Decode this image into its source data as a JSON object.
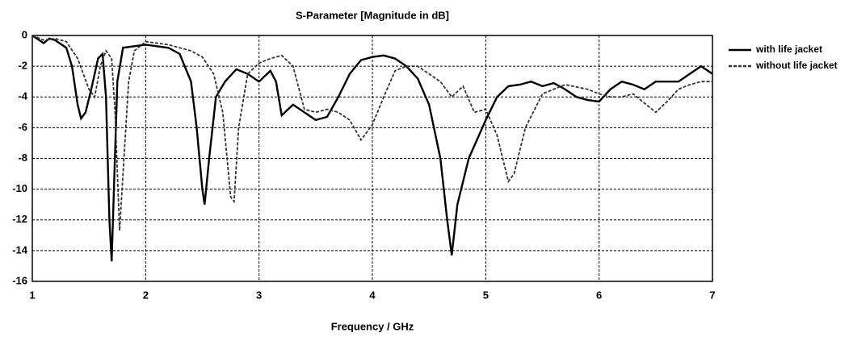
{
  "chart_data": {
    "type": "line",
    "title": "S-Parameter [Magnitude in dB]",
    "x_label": "Frequency / GHz",
    "xlim": [
      1,
      7
    ],
    "xticks": [
      1,
      2,
      3,
      4,
      5,
      6,
      7
    ],
    "ylim": [
      -16,
      0
    ],
    "yticks": [
      -16,
      -14,
      -12,
      -10,
      -8,
      -6,
      -4,
      -2,
      0
    ],
    "grid": true,
    "legend": "right",
    "series": [
      {
        "name": "with life jacket",
        "color": "#000000",
        "style": "solid",
        "x": [
          1.0,
          1.1,
          1.15,
          1.2,
          1.3,
          1.35,
          1.4,
          1.43,
          1.47,
          1.52,
          1.58,
          1.62,
          1.65,
          1.68,
          1.7,
          1.72,
          1.75,
          1.8,
          1.9,
          2.0,
          2.2,
          2.3,
          2.4,
          2.45,
          2.5,
          2.52,
          2.56,
          2.62,
          2.7,
          2.8,
          2.9,
          3.0,
          3.1,
          3.15,
          3.2,
          3.3,
          3.4,
          3.5,
          3.6,
          3.7,
          3.8,
          3.9,
          4.0,
          4.1,
          4.2,
          4.3,
          4.4,
          4.5,
          4.6,
          4.66,
          4.7,
          4.75,
          4.85,
          5.0,
          5.1,
          5.2,
          5.3,
          5.4,
          5.5,
          5.6,
          5.7,
          5.8,
          5.9,
          6.0,
          6.1,
          6.2,
          6.3,
          6.4,
          6.5,
          6.7,
          6.8,
          6.9,
          7.0
        ],
        "values": [
          0,
          -0.5,
          -0.2,
          -0.3,
          -0.8,
          -2,
          -4.5,
          -5.4,
          -5,
          -3.5,
          -1.5,
          -1.2,
          -4,
          -12,
          -14.7,
          -10,
          -3,
          -0.8,
          -0.7,
          -0.6,
          -0.8,
          -1.2,
          -3,
          -6,
          -10,
          -11,
          -8,
          -4,
          -3,
          -2.2,
          -2.5,
          -3,
          -2.3,
          -3,
          -5.2,
          -4.5,
          -5,
          -5.5,
          -5.3,
          -4,
          -2.5,
          -1.6,
          -1.4,
          -1.3,
          -1.5,
          -2,
          -2.8,
          -4.5,
          -8,
          -12,
          -14.3,
          -11,
          -8,
          -5.5,
          -4,
          -3.3,
          -3.2,
          -3,
          -3.3,
          -3.1,
          -3.5,
          -4,
          -4.2,
          -4.3,
          -3.5,
          -3,
          -3.2,
          -3.5,
          -3,
          -3,
          -2.5,
          -2,
          -2.5
        ]
      },
      {
        "name": "without life jacket",
        "color": "#333333",
        "style": "dashed",
        "x": [
          1.0,
          1.1,
          1.2,
          1.3,
          1.4,
          1.5,
          1.55,
          1.6,
          1.65,
          1.7,
          1.73,
          1.77,
          1.8,
          1.85,
          1.9,
          2.0,
          2.2,
          2.4,
          2.5,
          2.6,
          2.68,
          2.75,
          2.78,
          2.82,
          2.9,
          3.0,
          3.1,
          3.2,
          3.3,
          3.4,
          3.5,
          3.6,
          3.7,
          3.8,
          3.9,
          4.0,
          4.1,
          4.2,
          4.3,
          4.4,
          4.5,
          4.6,
          4.7,
          4.8,
          4.9,
          5.0,
          5.1,
          5.2,
          5.25,
          5.35,
          5.5,
          5.7,
          5.9,
          6.0,
          6.1,
          6.2,
          6.3,
          6.5,
          6.6,
          6.7,
          6.8,
          6.9,
          7.0
        ],
        "values": [
          0,
          -0.3,
          -0.2,
          -0.4,
          -1.5,
          -3.5,
          -4,
          -2,
          -1,
          -1.5,
          -5,
          -12.7,
          -9,
          -3,
          -1,
          -0.4,
          -0.6,
          -1,
          -1.4,
          -2.5,
          -5,
          -10.5,
          -10.8,
          -6,
          -2.5,
          -1.8,
          -1.5,
          -1.3,
          -2,
          -4.8,
          -5,
          -4.8,
          -5,
          -5.5,
          -6.8,
          -5.8,
          -4,
          -2.3,
          -2,
          -2,
          -2.5,
          -3,
          -4,
          -3.3,
          -5,
          -4.8,
          -6.5,
          -9.5,
          -9,
          -6,
          -3.8,
          -3.2,
          -3.5,
          -3.8,
          -4,
          -4,
          -3.8,
          -5,
          -4.3,
          -3.5,
          -3.2,
          -3,
          -3
        ]
      }
    ]
  }
}
